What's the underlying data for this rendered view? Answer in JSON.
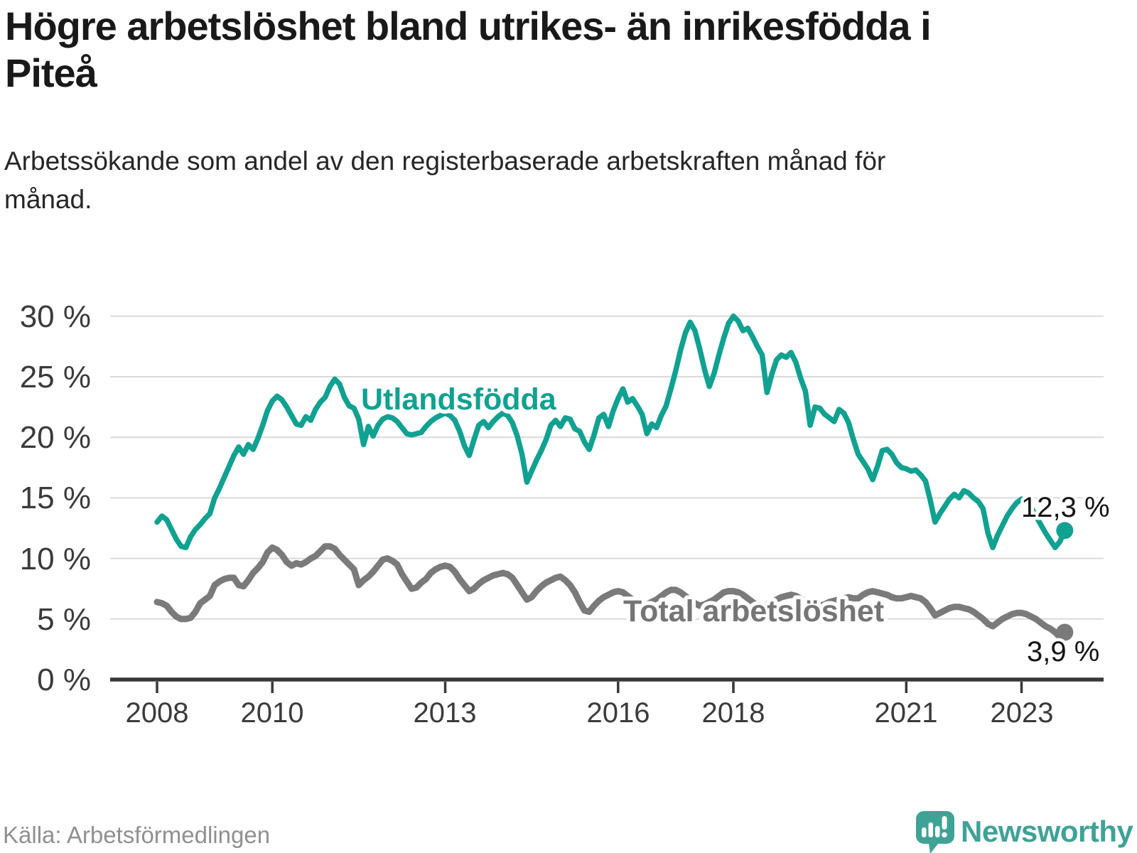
{
  "header": {
    "title": "Högre arbetslöshet bland utrikes- än inrikesfödda i Piteå",
    "subtitle": "Arbetssökande som andel av den registerbaserade arbetskraften månad för månad."
  },
  "footer": {
    "source": "Källa: Arbetsförmedlingen",
    "brand": "Newsworthy"
  },
  "colors": {
    "series_foreign_born": "#10A191",
    "series_total": "#7A7A7A",
    "brand_teal": "#3FA296",
    "gridline": "#DADADA",
    "axis": "#383838",
    "text_dark": "#191919",
    "axis_label": "#3b3b3b"
  },
  "chart_data": {
    "type": "line",
    "title": "Högre arbetslöshet bland utrikes- än inrikesfödda i Piteå",
    "subtitle": "Arbetssökande som andel av den registerbaserade arbetskraften månad för månad.",
    "unit": "%",
    "grid": true,
    "legend_position": "inline-labels",
    "x_axis": {
      "frequency": "monthly",
      "start_year": 2008,
      "start_month": 1,
      "end_year": 2023,
      "end_month": 10,
      "tick_years": [
        2008,
        2010,
        2013,
        2016,
        2018,
        2021,
        2023
      ],
      "tick_labels": [
        "2008",
        "2010",
        "2013",
        "2016",
        "2018",
        "2021",
        "2023"
      ]
    },
    "y_axis": {
      "min": 0,
      "max": 30,
      "ticks": [
        0,
        5,
        10,
        15,
        20,
        25,
        30
      ],
      "tick_labels": [
        "0 %",
        "5 %",
        "10 %",
        "15 %",
        "20 %",
        "25 %",
        "30 %"
      ]
    },
    "series": [
      {
        "id": "utlandsfodda",
        "name": "Utlandsfödda",
        "color": "#10A191",
        "end_value": 12.3,
        "end_label": "12,3 %",
        "values": [
          13.0,
          13.5,
          13.2,
          12.4,
          11.6,
          11.0,
          10.9,
          11.8,
          12.4,
          12.8,
          13.3,
          13.7,
          15.0,
          15.8,
          16.7,
          17.6,
          18.5,
          19.2,
          18.6,
          19.4,
          19.0,
          19.9,
          21.0,
          22.2,
          23.0,
          23.4,
          23.1,
          22.5,
          21.8,
          21.1,
          21.0,
          21.7,
          21.4,
          22.3,
          22.9,
          23.3,
          24.2,
          24.8,
          24.4,
          23.3,
          22.6,
          22.4,
          21.5,
          19.4,
          20.9,
          20.1,
          21.0,
          21.5,
          21.7,
          21.6,
          21.3,
          20.8,
          20.3,
          20.2,
          20.3,
          20.4,
          20.9,
          21.3,
          21.6,
          21.8,
          22.0,
          21.8,
          21.4,
          20.5,
          19.3,
          18.5,
          19.8,
          21.0,
          21.3,
          20.8,
          21.3,
          21.7,
          22.0,
          21.8,
          21.2,
          20.1,
          18.6,
          16.3,
          17.2,
          18.1,
          18.9,
          19.8,
          21.0,
          21.4,
          20.9,
          21.6,
          21.5,
          20.7,
          20.5,
          19.6,
          19.0,
          20.2,
          21.6,
          21.9,
          20.9,
          22.2,
          23.2,
          24.0,
          22.9,
          23.2,
          22.6,
          21.9,
          20.3,
          21.1,
          20.8,
          21.8,
          22.6,
          24.0,
          25.5,
          27.2,
          28.6,
          29.5,
          28.8,
          27.3,
          25.6,
          24.2,
          25.3,
          26.8,
          28.2,
          29.4,
          30.0,
          29.6,
          28.8,
          29.0,
          28.3,
          27.5,
          26.8,
          23.7,
          25.2,
          26.4,
          26.8,
          26.6,
          27.0,
          26.2,
          24.9,
          23.8,
          21.0,
          22.5,
          22.4,
          21.9,
          21.6,
          21.3,
          22.3,
          22.0,
          21.2,
          19.8,
          18.6,
          18.0,
          17.4,
          16.5,
          17.6,
          18.9,
          19.0,
          18.6,
          17.9,
          17.5,
          17.4,
          17.2,
          17.3,
          16.9,
          16.4,
          14.8,
          13.0,
          13.7,
          14.3,
          14.9,
          15.3,
          15.0,
          15.6,
          15.4,
          15.0,
          14.7,
          14.1,
          12.1,
          10.9,
          11.9,
          12.7,
          13.5,
          14.1,
          14.6,
          14.9,
          14.6,
          14.2,
          13.5,
          12.8,
          12.1,
          11.5,
          10.9,
          11.4,
          12.3
        ]
      },
      {
        "id": "total",
        "name": "Total arbetslöshet",
        "color": "#7A7A7A",
        "end_value": 3.9,
        "end_label": "3,9 %",
        "values": [
          6.4,
          6.3,
          6.1,
          5.6,
          5.2,
          5.0,
          5.0,
          5.1,
          5.6,
          6.3,
          6.6,
          6.9,
          7.8,
          8.1,
          8.3,
          8.4,
          8.4,
          7.8,
          7.7,
          8.2,
          8.8,
          9.2,
          9.7,
          10.5,
          10.9,
          10.7,
          10.3,
          9.7,
          9.4,
          9.6,
          9.5,
          9.7,
          10.0,
          10.2,
          10.6,
          11.0,
          11.0,
          10.8,
          10.3,
          9.9,
          9.5,
          9.1,
          7.8,
          8.2,
          8.5,
          8.9,
          9.4,
          9.9,
          10.0,
          9.8,
          9.5,
          8.7,
          8.1,
          7.5,
          7.6,
          8.0,
          8.3,
          8.8,
          9.1,
          9.3,
          9.4,
          9.3,
          8.9,
          8.3,
          7.8,
          7.3,
          7.5,
          7.9,
          8.2,
          8.4,
          8.6,
          8.7,
          8.8,
          8.7,
          8.4,
          7.8,
          7.2,
          6.6,
          6.8,
          7.3,
          7.7,
          8.0,
          8.2,
          8.4,
          8.5,
          8.2,
          7.8,
          7.2,
          6.4,
          5.7,
          5.6,
          6.1,
          6.5,
          6.8,
          7.0,
          7.2,
          7.3,
          7.2,
          6.9,
          6.6,
          6.3,
          6.1,
          6.2,
          6.4,
          6.6,
          6.9,
          7.2,
          7.4,
          7.4,
          7.2,
          6.9,
          6.6,
          6.3,
          6.1,
          6.2,
          6.4,
          6.6,
          6.9,
          7.2,
          7.3,
          7.3,
          7.2,
          7.0,
          6.7,
          6.4,
          6.1,
          6.0,
          6.2,
          6.4,
          6.6,
          6.8,
          6.9,
          7.0,
          6.9,
          6.7,
          6.4,
          6.2,
          6.0,
          6.1,
          6.2,
          6.4,
          6.5,
          6.6,
          6.7,
          6.8,
          6.7,
          6.7,
          7.0,
          7.2,
          7.3,
          7.2,
          7.1,
          7.0,
          6.8,
          6.7,
          6.7,
          6.8,
          6.9,
          6.8,
          6.7,
          6.4,
          5.9,
          5.3,
          5.5,
          5.7,
          5.9,
          6.0,
          6.0,
          5.9,
          5.8,
          5.6,
          5.3,
          5.0,
          4.6,
          4.4,
          4.7,
          5.0,
          5.2,
          5.4,
          5.5,
          5.5,
          5.4,
          5.2,
          5.0,
          4.7,
          4.4,
          4.2,
          3.9,
          3.5,
          3.9
        ]
      }
    ]
  }
}
